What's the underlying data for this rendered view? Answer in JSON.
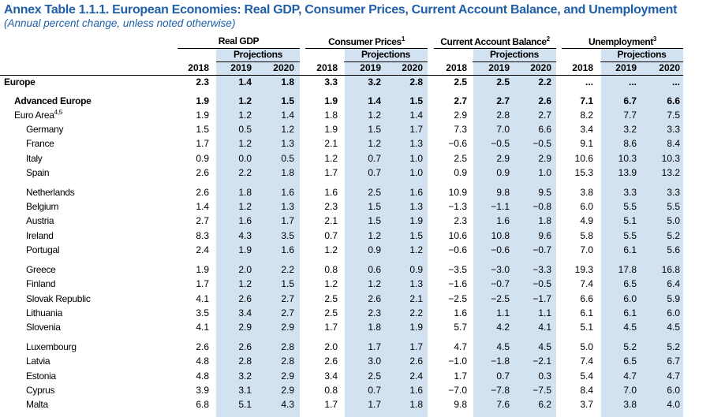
{
  "title": "Annex Table 1.1.1. European Economies: Real GDP, Consumer Prices, Current Account Balance, and Unemployment",
  "subtitle": "(Annual percent change, unless noted otherwise)",
  "groups": [
    {
      "name": "Real GDP",
      "note": ""
    },
    {
      "name": "Consumer Prices",
      "note": "1"
    },
    {
      "name": "Current Account Balance",
      "note": "2"
    },
    {
      "name": "Unemployment",
      "note": "3"
    }
  ],
  "projections_label": "Projections",
  "years": [
    "2018",
    "2019",
    "2020"
  ],
  "rows": [
    {
      "label": "Europe",
      "note": "",
      "values": [
        "2.3",
        "1.4",
        "1.8",
        "3.3",
        "3.2",
        "2.8",
        "2.5",
        "2.5",
        "2.2",
        "...",
        "...",
        "..."
      ]
    },
    {
      "label": "Advanced Europe",
      "note": "",
      "values": [
        "1.9",
        "1.2",
        "1.5",
        "1.9",
        "1.4",
        "1.5",
        "2.7",
        "2.7",
        "2.6",
        "7.1",
        "6.7",
        "6.6"
      ]
    },
    {
      "label": "Euro Area",
      "note": "4,5",
      "values": [
        "1.9",
        "1.2",
        "1.4",
        "1.8",
        "1.2",
        "1.4",
        "2.9",
        "2.8",
        "2.7",
        "8.2",
        "7.7",
        "7.5"
      ]
    },
    {
      "label": "Germany",
      "note": "",
      "values": [
        "1.5",
        "0.5",
        "1.2",
        "1.9",
        "1.5",
        "1.7",
        "7.3",
        "7.0",
        "6.6",
        "3.4",
        "3.2",
        "3.3"
      ]
    },
    {
      "label": "France",
      "note": "",
      "values": [
        "1.7",
        "1.2",
        "1.3",
        "2.1",
        "1.2",
        "1.3",
        "−0.6",
        "−0.5",
        "−0.5",
        "9.1",
        "8.6",
        "8.4"
      ]
    },
    {
      "label": "Italy",
      "note": "",
      "values": [
        "0.9",
        "0.0",
        "0.5",
        "1.2",
        "0.7",
        "1.0",
        "2.5",
        "2.9",
        "2.9",
        "10.6",
        "10.3",
        "10.3"
      ]
    },
    {
      "label": "Spain",
      "note": "",
      "values": [
        "2.6",
        "2.2",
        "1.8",
        "1.7",
        "0.7",
        "1.0",
        "0.9",
        "0.9",
        "1.0",
        "15.3",
        "13.9",
        "13.2"
      ]
    },
    {
      "label": "Netherlands",
      "note": "",
      "values": [
        "2.6",
        "1.8",
        "1.6",
        "1.6",
        "2.5",
        "1.6",
        "10.9",
        "9.8",
        "9.5",
        "3.8",
        "3.3",
        "3.3"
      ]
    },
    {
      "label": "Belgium",
      "note": "",
      "values": [
        "1.4",
        "1.2",
        "1.3",
        "2.3",
        "1.5",
        "1.3",
        "−1.3",
        "−1.1",
        "−0.8",
        "6.0",
        "5.5",
        "5.5"
      ]
    },
    {
      "label": "Austria",
      "note": "",
      "values": [
        "2.7",
        "1.6",
        "1.7",
        "2.1",
        "1.5",
        "1.9",
        "2.3",
        "1.6",
        "1.8",
        "4.9",
        "5.1",
        "5.0"
      ]
    },
    {
      "label": "Ireland",
      "note": "",
      "values": [
        "8.3",
        "4.3",
        "3.5",
        "0.7",
        "1.2",
        "1.5",
        "10.6",
        "10.8",
        "9.6",
        "5.8",
        "5.5",
        "5.2"
      ]
    },
    {
      "label": "Portugal",
      "note": "",
      "values": [
        "2.4",
        "1.9",
        "1.6",
        "1.2",
        "0.9",
        "1.2",
        "−0.6",
        "−0.6",
        "−0.7",
        "7.0",
        "6.1",
        "5.6"
      ]
    },
    {
      "label": "Greece",
      "note": "",
      "values": [
        "1.9",
        "2.0",
        "2.2",
        "0.8",
        "0.6",
        "0.9",
        "−3.5",
        "−3.0",
        "−3.3",
        "19.3",
        "17.8",
        "16.8"
      ]
    },
    {
      "label": "Finland",
      "note": "",
      "values": [
        "1.7",
        "1.2",
        "1.5",
        "1.2",
        "1.2",
        "1.3",
        "−1.6",
        "−0.7",
        "−0.5",
        "7.4",
        "6.5",
        "6.4"
      ]
    },
    {
      "label": "Slovak Republic",
      "note": "",
      "values": [
        "4.1",
        "2.6",
        "2.7",
        "2.5",
        "2.6",
        "2.1",
        "−2.5",
        "−2.5",
        "−1.7",
        "6.6",
        "6.0",
        "5.9"
      ]
    },
    {
      "label": "Lithuania",
      "note": "",
      "values": [
        "3.5",
        "3.4",
        "2.7",
        "2.5",
        "2.3",
        "2.2",
        "1.6",
        "1.1",
        "1.1",
        "6.1",
        "6.1",
        "6.0"
      ]
    },
    {
      "label": "Slovenia",
      "note": "",
      "values": [
        "4.1",
        "2.9",
        "2.9",
        "1.7",
        "1.8",
        "1.9",
        "5.7",
        "4.2",
        "4.1",
        "5.1",
        "4.5",
        "4.5"
      ]
    },
    {
      "label": "Luxembourg",
      "note": "",
      "values": [
        "2.6",
        "2.6",
        "2.8",
        "2.0",
        "1.7",
        "1.7",
        "4.7",
        "4.5",
        "4.5",
        "5.0",
        "5.2",
        "5.2"
      ]
    },
    {
      "label": "Latvia",
      "note": "",
      "values": [
        "4.8",
        "2.8",
        "2.8",
        "2.6",
        "3.0",
        "2.6",
        "−1.0",
        "−1.8",
        "−2.1",
        "7.4",
        "6.5",
        "6.7"
      ]
    },
    {
      "label": "Estonia",
      "note": "",
      "values": [
        "4.8",
        "3.2",
        "2.9",
        "3.4",
        "2.5",
        "2.4",
        "1.7",
        "0.7",
        "0.3",
        "5.4",
        "4.7",
        "4.7"
      ]
    },
    {
      "label": "Cyprus",
      "note": "",
      "values": [
        "3.9",
        "3.1",
        "2.9",
        "0.8",
        "0.7",
        "1.6",
        "−7.0",
        "−7.8",
        "−7.5",
        "8.4",
        "7.0",
        "6.0"
      ]
    },
    {
      "label": "Malta",
      "note": "",
      "values": [
        "6.8",
        "5.1",
        "4.3",
        "1.7",
        "1.7",
        "1.8",
        "9.8",
        "7.6",
        "6.2",
        "3.7",
        "3.8",
        "4.0"
      ]
    }
  ]
}
